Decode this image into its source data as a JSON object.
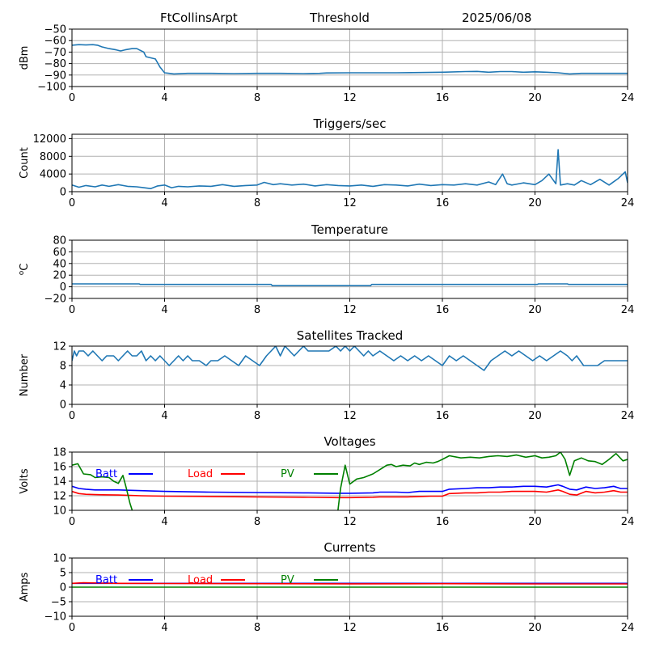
{
  "header": {
    "station": "FtCollinsArpt",
    "mode": "Threshold",
    "date": "2025/06/08"
  },
  "colors": {
    "series": "#1f77b4",
    "batt": "#0000ff",
    "load": "#ff0000",
    "pv": "#008000",
    "grid": "#b0b0b0",
    "axis": "#000000"
  },
  "chart_data": [
    {
      "id": "threshold",
      "type": "line",
      "title": "",
      "xlabel": "",
      "ylabel": "dBm",
      "xlim": [
        0,
        24
      ],
      "ylim": [
        -100,
        -50
      ],
      "xticks": [
        0,
        4,
        8,
        12,
        16,
        20,
        24
      ],
      "yticks": [
        -100,
        -90,
        -80,
        -70,
        -60,
        -50
      ],
      "grid": true,
      "series": [
        {
          "color_key": "series",
          "x": [
            0,
            0.3,
            0.6,
            0.9,
            1.1,
            1.3,
            1.6,
            1.9,
            2.1,
            2.3,
            2.6,
            2.8,
            2.9,
            3.1,
            3.2,
            3.4,
            3.6,
            3.8,
            4.0,
            4.2,
            4.4,
            5,
            6,
            7,
            8,
            9,
            10,
            10.7,
            11,
            12,
            13,
            14,
            15,
            16,
            17,
            17.5,
            18,
            18.5,
            19,
            19.5,
            20,
            20.5,
            21,
            21.5,
            22,
            23,
            24
          ],
          "y": [
            -64,
            -63.5,
            -63.8,
            -63.5,
            -64,
            -65.5,
            -67,
            -68,
            -69,
            -68,
            -67,
            -67,
            -68,
            -70,
            -74,
            -75,
            -76,
            -83,
            -88,
            -88.5,
            -89,
            -88.5,
            -88.5,
            -88.7,
            -88.5,
            -88.5,
            -88.7,
            -88.5,
            -88.2,
            -88,
            -88,
            -88,
            -87.8,
            -87.5,
            -87,
            -86.8,
            -87.5,
            -87,
            -87,
            -87.5,
            -87.2,
            -87.5,
            -88,
            -89,
            -88.5,
            -88.5,
            -88.5
          ]
        }
      ]
    },
    {
      "id": "triggers",
      "type": "line",
      "title": "Triggers/sec",
      "xlabel": "",
      "ylabel": "Count",
      "xlim": [
        0,
        24
      ],
      "ylim": [
        0,
        13000
      ],
      "xticks": [
        0,
        4,
        8,
        12,
        16,
        20,
        24
      ],
      "yticks": [
        0,
        4000,
        8000,
        12000
      ],
      "grid": true,
      "series": [
        {
          "color_key": "series",
          "x": [
            0,
            0.3,
            0.6,
            1,
            1.3,
            1.6,
            2,
            2.4,
            2.8,
            3.1,
            3.4,
            3.7,
            4,
            4.3,
            4.6,
            5,
            5.5,
            6,
            6.5,
            7,
            7.5,
            8,
            8.3,
            8.7,
            9,
            9.5,
            10,
            10.5,
            11,
            11.5,
            12,
            12.5,
            13,
            13.5,
            14,
            14.5,
            15,
            15.5,
            16,
            16.5,
            17,
            17.5,
            18,
            18.3,
            18.6,
            18.8,
            19,
            19.5,
            20,
            20.3,
            20.6,
            20.9,
            21,
            21.1,
            21.4,
            21.7,
            22,
            22.4,
            22.8,
            23.2,
            23.6,
            23.9,
            24
          ],
          "y": [
            1500,
            1000,
            1400,
            1100,
            1500,
            1200,
            1600,
            1200,
            1100,
            900,
            700,
            1300,
            1500,
            900,
            1200,
            1100,
            1300,
            1200,
            1600,
            1200,
            1400,
            1500,
            2100,
            1600,
            1800,
            1500,
            1700,
            1300,
            1600,
            1400,
            1300,
            1500,
            1200,
            1600,
            1500,
            1300,
            1700,
            1400,
            1600,
            1500,
            1800,
            1500,
            2200,
            1600,
            4000,
            1800,
            1500,
            2000,
            1600,
            2500,
            4000,
            1800,
            9500,
            1500,
            1800,
            1500,
            2500,
            1600,
            2800,
            1500,
            3000,
            4500,
            2000
          ]
        }
      ]
    },
    {
      "id": "temperature",
      "type": "line",
      "title": "Temperature",
      "xlabel": "",
      "ylabel": "oC",
      "xlim": [
        0,
        24
      ],
      "ylim": [
        -20,
        80
      ],
      "xticks": [
        0,
        4,
        8,
        12,
        16,
        20,
        24
      ],
      "yticks": [
        -20,
        0,
        20,
        40,
        60,
        80
      ],
      "grid": true,
      "series": [
        {
          "color_key": "series",
          "x": [
            0,
            2.9,
            2.95,
            8.6,
            8.65,
            12.9,
            12.95,
            20.1,
            20.15,
            21.4,
            21.45,
            24
          ],
          "y": [
            5,
            5,
            4,
            4,
            2,
            2,
            4,
            4,
            5,
            5,
            4,
            4
          ]
        }
      ]
    },
    {
      "id": "satellites",
      "type": "line",
      "title": "Satellites Tracked",
      "xlabel": "",
      "ylabel": "Number",
      "xlim": [
        0,
        24
      ],
      "ylim": [
        0,
        12
      ],
      "xticks": [
        0,
        4,
        8,
        12,
        16,
        20,
        24
      ],
      "yticks": [
        0,
        4,
        8,
        12
      ],
      "grid": true,
      "series": [
        {
          "color_key": "series",
          "x": [
            0,
            0.1,
            0.2,
            0.3,
            0.5,
            0.7,
            0.9,
            1.1,
            1.3,
            1.5,
            1.8,
            2.0,
            2.2,
            2.4,
            2.6,
            2.8,
            3.0,
            3.2,
            3.4,
            3.6,
            3.8,
            4.0,
            4.2,
            4.4,
            4.6,
            4.8,
            5.0,
            5.2,
            5.5,
            5.8,
            6.0,
            6.3,
            6.6,
            6.9,
            7.2,
            7.5,
            7.8,
            8.1,
            8.4,
            8.6,
            8.8,
            9.0,
            9.2,
            9.4,
            9.6,
            9.8,
            10.0,
            10.2,
            10.5,
            10.8,
            11.1,
            11.4,
            11.6,
            11.8,
            12.0,
            12.2,
            12.4,
            12.6,
            12.8,
            13.0,
            13.3,
            13.6,
            13.9,
            14.2,
            14.5,
            14.8,
            15.1,
            15.4,
            15.7,
            16.0,
            16.3,
            16.6,
            16.9,
            17.2,
            17.5,
            17.8,
            18.1,
            18.4,
            18.7,
            19.0,
            19.3,
            19.6,
            19.9,
            20.2,
            20.5,
            20.8,
            21.1,
            21.4,
            21.6,
            21.8,
            22.1,
            22.4,
            22.7,
            23.0,
            23.3,
            23.6,
            23.8,
            24
          ],
          "y": [
            9,
            11,
            10,
            11,
            11,
            10,
            11,
            10,
            9,
            10,
            10,
            9,
            10,
            11,
            10,
            10,
            11,
            9,
            10,
            9,
            10,
            9,
            8,
            9,
            10,
            9,
            10,
            9,
            9,
            8,
            9,
            9,
            10,
            9,
            8,
            10,
            9,
            8,
            10,
            11,
            12,
            10,
            12,
            11,
            10,
            11,
            12,
            11,
            11,
            11,
            11,
            12,
            11,
            12,
            11,
            12,
            11,
            10,
            11,
            10,
            11,
            10,
            9,
            10,
            9,
            10,
            9,
            10,
            9,
            8,
            10,
            9,
            10,
            9,
            8,
            7,
            9,
            10,
            11,
            10,
            11,
            10,
            9,
            10,
            9,
            10,
            11,
            10,
            9,
            10,
            8,
            8,
            8,
            9,
            9,
            9,
            9,
            9
          ]
        }
      ]
    },
    {
      "id": "voltages",
      "type": "line",
      "title": "Voltages",
      "xlabel": "",
      "ylabel": "Volts",
      "xlim": [
        0,
        24
      ],
      "ylim": [
        10,
        18
      ],
      "xticks": [
        0,
        4,
        8,
        12,
        16,
        20,
        24
      ],
      "yticks": [
        10,
        12,
        14,
        16,
        18
      ],
      "grid": true,
      "legend": "top-left",
      "series": [
        {
          "name": "Batt",
          "color_key": "batt",
          "x": [
            0,
            0.3,
            0.6,
            1,
            2,
            3,
            4,
            6,
            8,
            10,
            11.5,
            12,
            13,
            13.3,
            14,
            14.5,
            15,
            15.5,
            16,
            16.3,
            17,
            17.5,
            18,
            18.5,
            19,
            19.5,
            20,
            20.5,
            21,
            21.2,
            21.5,
            21.8,
            22.2,
            22.6,
            23,
            23.4,
            23.7,
            24
          ],
          "y": [
            13.3,
            13.0,
            12.9,
            12.8,
            12.8,
            12.7,
            12.6,
            12.5,
            12.45,
            12.4,
            12.35,
            12.35,
            12.4,
            12.5,
            12.5,
            12.45,
            12.6,
            12.6,
            12.6,
            12.9,
            13.0,
            13.1,
            13.1,
            13.2,
            13.2,
            13.3,
            13.3,
            13.2,
            13.5,
            13.3,
            12.9,
            12.8,
            13.2,
            13.0,
            13.1,
            13.3,
            13.0,
            13.0
          ]
        },
        {
          "name": "Load",
          "color_key": "load",
          "x": [
            0,
            0.3,
            0.6,
            1,
            2,
            3,
            4,
            6,
            8,
            10,
            11.5,
            12,
            13,
            13.3,
            14,
            14.5,
            15,
            15.5,
            16,
            16.3,
            17,
            17.5,
            18,
            18.5,
            19,
            19.5,
            20,
            20.5,
            21,
            21.2,
            21.5,
            21.8,
            22.2,
            22.6,
            23,
            23.4,
            23.7,
            24
          ],
          "y": [
            12.6,
            12.3,
            12.2,
            12.15,
            12.1,
            12.0,
            11.95,
            11.9,
            11.85,
            11.8,
            11.75,
            11.75,
            11.8,
            11.85,
            11.85,
            11.85,
            11.9,
            11.95,
            11.95,
            12.3,
            12.4,
            12.4,
            12.5,
            12.5,
            12.6,
            12.6,
            12.6,
            12.5,
            12.8,
            12.6,
            12.2,
            12.1,
            12.6,
            12.4,
            12.5,
            12.7,
            12.5,
            12.5
          ]
        },
        {
          "name": "PV",
          "color_key": "pv",
          "x": [
            0,
            0.25,
            0.5,
            0.8,
            1.0,
            1.3,
            1.6,
            1.8,
            2.0,
            2.2,
            2.35,
            2.5,
            2.65,
            2.7,
            11.45,
            11.6,
            11.8,
            12.0,
            12.3,
            12.6,
            13.0,
            13.4,
            13.6,
            13.8,
            14.0,
            14.3,
            14.6,
            14.8,
            15.0,
            15.3,
            15.6,
            15.8,
            16.0,
            16.3,
            16.8,
            17.2,
            17.6,
            18.0,
            18.4,
            18.8,
            19.2,
            19.6,
            20.0,
            20.3,
            20.6,
            20.9,
            21.1,
            21.3,
            21.5,
            21.7,
            22.0,
            22.3,
            22.6,
            22.9,
            23.2,
            23.5,
            23.8,
            24
          ],
          "y": [
            16.2,
            16.4,
            15.0,
            14.9,
            14.5,
            14.6,
            14.5,
            14.0,
            13.7,
            14.8,
            13.0,
            11.0,
            9.5,
            9.0,
            9.0,
            13.0,
            16.2,
            13.6,
            14.3,
            14.5,
            15.0,
            15.8,
            16.2,
            16.3,
            16.0,
            16.2,
            16.1,
            16.5,
            16.3,
            16.6,
            16.5,
            16.7,
            17.0,
            17.5,
            17.2,
            17.3,
            17.2,
            17.4,
            17.5,
            17.4,
            17.6,
            17.3,
            17.5,
            17.2,
            17.3,
            17.5,
            18.0,
            17.0,
            14.8,
            16.8,
            17.2,
            16.8,
            16.7,
            16.3,
            17.0,
            17.8,
            16.8,
            17.0
          ]
        }
      ]
    },
    {
      "id": "currents",
      "type": "line",
      "title": "Currents",
      "xlabel": "",
      "ylabel": "Amps",
      "xlim": [
        0,
        24
      ],
      "ylim": [
        -10,
        10
      ],
      "xticks": [
        0,
        4,
        8,
        12,
        16,
        20,
        24
      ],
      "yticks": [
        -10,
        -5,
        0,
        5,
        10
      ],
      "grid": true,
      "legend": "top-left",
      "series": [
        {
          "name": "Batt",
          "color_key": "batt",
          "x": [
            0,
            24
          ],
          "y": [
            1.3,
            1.3
          ]
        },
        {
          "name": "Load",
          "color_key": "load",
          "x": [
            0,
            0.5,
            2,
            4,
            8,
            12,
            16,
            20,
            24
          ],
          "y": [
            1.3,
            1.5,
            1.3,
            1.25,
            1.2,
            1.15,
            1.2,
            1.1,
            1.1
          ]
        },
        {
          "name": "PV",
          "color_key": "pv",
          "x": [
            0,
            24
          ],
          "y": [
            0,
            0
          ]
        }
      ]
    }
  ]
}
